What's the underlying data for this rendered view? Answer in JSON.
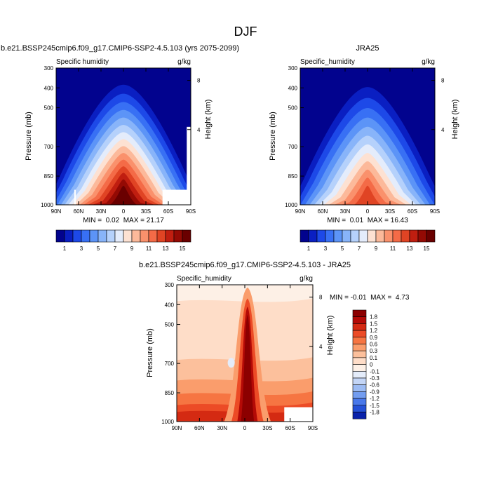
{
  "figure": {
    "title": "DJF"
  },
  "chart_data": [
    {
      "type": "heatmap",
      "title": "b.e21.BSSP245cmip6.f09_g17.CMIP6-SSP2-4.5.103 (yrs 2075-2099)",
      "left_label": "Specific humidity",
      "right_label": "g/kg",
      "xlabel": "",
      "ylabel": "Pressure (mb)",
      "y2label": "Height (km)",
      "x_ticks": [
        "90N",
        "60N",
        "30N",
        "0",
        "30S",
        "60S",
        "90S"
      ],
      "y_ticks": [
        "300",
        "400",
        "500",
        "700",
        "850",
        "1000"
      ],
      "y2_ticks": [
        "8",
        "4"
      ],
      "stats": "MIN =  0.02  MAX = 21.17",
      "ylim": [
        1000,
        300
      ],
      "peak_gkg": 21.17,
      "levels": [
        1,
        3,
        5,
        7,
        9,
        11,
        13,
        15
      ]
    },
    {
      "type": "heatmap",
      "title": "JRA25",
      "left_label": "Specific_humidity",
      "right_label": "g/kg",
      "xlabel": "",
      "ylabel": "Pressure (mb)",
      "y2label": "Height (km)",
      "x_ticks": [
        "90N",
        "60N",
        "30N",
        "0",
        "30S",
        "60S",
        "90S"
      ],
      "y_ticks": [
        "300",
        "400",
        "500",
        "700",
        "850",
        "1000"
      ],
      "y2_ticks": [
        "8",
        "4"
      ],
      "stats": "MIN =  0.01  MAX = 16.43",
      "ylim": [
        1000,
        300
      ],
      "peak_gkg": 16.43,
      "levels": [
        1,
        3,
        5,
        7,
        9,
        11,
        13,
        15
      ]
    },
    {
      "type": "heatmap",
      "title": "b.e21.BSSP245cmip6.f09_g17.CMIP6-SSP2-4.5.103 - JRA25",
      "left_label": "Specific_humidity",
      "right_label": "g/kg",
      "xlabel": "",
      "ylabel": "Pressure (mb)",
      "y2label": "Height (km)",
      "x_ticks": [
        "90N",
        "60N",
        "30N",
        "0",
        "30S",
        "60S",
        "90S"
      ],
      "y_ticks": [
        "300",
        "400",
        "500",
        "700",
        "850",
        "1000"
      ],
      "y2_ticks": [
        "8",
        "4"
      ],
      "stats": "MIN = -0.01  MAX =  4.73",
      "ylim": [
        1000,
        300
      ],
      "peak_gkg": 4.73,
      "levels": [
        1.8,
        1.5,
        1.2,
        0.9,
        0.6,
        0.3,
        0.1,
        0,
        -0.1,
        -0.3,
        -0.6,
        -0.9,
        -1.2,
        -1.5,
        -1.8
      ]
    }
  ],
  "colorbars": {
    "abs_labels": [
      "1",
      "3",
      "5",
      "7",
      "9",
      "11",
      "13",
      "15"
    ],
    "abs_colors": [
      "#02038e",
      "#0a1fc2",
      "#1d49e8",
      "#3870f4",
      "#5c94f7",
      "#88b4f9",
      "#b5d1fb",
      "#e4ecfb",
      "#fde1d2",
      "#fcb99a",
      "#fa916c",
      "#f46b47",
      "#e04424",
      "#c01e10",
      "#940a04",
      "#6a0000"
    ],
    "diff_labels": [
      "1.8",
      "1.5",
      "1.2",
      "0.9",
      "0.6",
      "0.3",
      "0.1",
      "0",
      "-0.1",
      "-0.3",
      "-0.6",
      "-0.9",
      "-1.2",
      "-1.5",
      "-1.8"
    ],
    "diff_colors": [
      "#8c0000",
      "#b40a06",
      "#d42a12",
      "#ec4b26",
      "#f67542",
      "#fa9d6c",
      "#fcc09c",
      "#feddc8",
      "#fdf0e6",
      "#e4ecfa",
      "#c3d5f6",
      "#9cbbf3",
      "#739df0",
      "#4978ea",
      "#2551d7",
      "#0a22aa"
    ]
  }
}
